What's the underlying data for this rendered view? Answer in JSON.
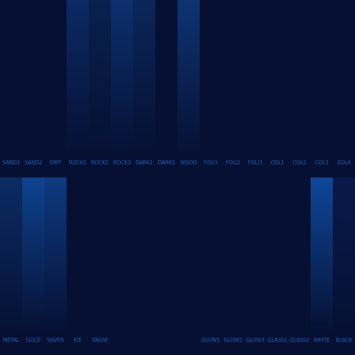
{
  "palette": {
    "rows": [
      {
        "swatches": [
          {
            "label": "SAND1",
            "color": "#061033"
          },
          {
            "label": "SAND2",
            "color": "#061033"
          },
          {
            "label": "DIRT",
            "color": "#061033"
          },
          {
            "label": "ROCK1",
            "color": "#0b2a63"
          },
          {
            "label": "ROCK2",
            "color": "#09214f"
          },
          {
            "label": "ROCK3",
            "color": "#0c306e"
          },
          {
            "label": "DARK1",
            "color": "#0a2659"
          },
          {
            "label": "DARK2",
            "color": "#061033"
          },
          {
            "label": "WOOD",
            "color": "#0d3474"
          },
          {
            "label": "FOLI1",
            "color": "#061033"
          },
          {
            "label": "FOLI2",
            "color": "#061033"
          },
          {
            "label": "FOLI3",
            "color": "#061033"
          },
          {
            "label": "COL1",
            "color": "#061033"
          },
          {
            "label": "COL2",
            "color": "#061033"
          },
          {
            "label": "COL3",
            "color": "#061033"
          },
          {
            "label": "COL4",
            "color": "#061033"
          }
        ]
      },
      {
        "swatches": [
          {
            "label": "METAL",
            "color": "#0b2c63"
          },
          {
            "label": "GOLD",
            "color": "#0e4290"
          },
          {
            "label": "SILVER",
            "color": "#0d3a80"
          },
          {
            "label": "ICE",
            "color": "#061033"
          },
          {
            "label": "SNOW",
            "color": "#061033"
          },
          {
            "label": "",
            "color": "#061033"
          },
          {
            "label": "",
            "color": "#061033"
          },
          {
            "label": "",
            "color": "#061033"
          },
          {
            "label": "",
            "color": "#061033"
          },
          {
            "label": "GLOW1",
            "color": "#061033"
          },
          {
            "label": "GLOW2",
            "color": "#061033"
          },
          {
            "label": "GLOW3",
            "color": "#061033"
          },
          {
            "label": "GLASS1",
            "color": "#061033"
          },
          {
            "label": "GLASS2",
            "color": "#061033"
          },
          {
            "label": "WHITE",
            "color": "#0f4799"
          },
          {
            "label": "BLACK",
            "color": "#09194a"
          }
        ]
      }
    ]
  }
}
